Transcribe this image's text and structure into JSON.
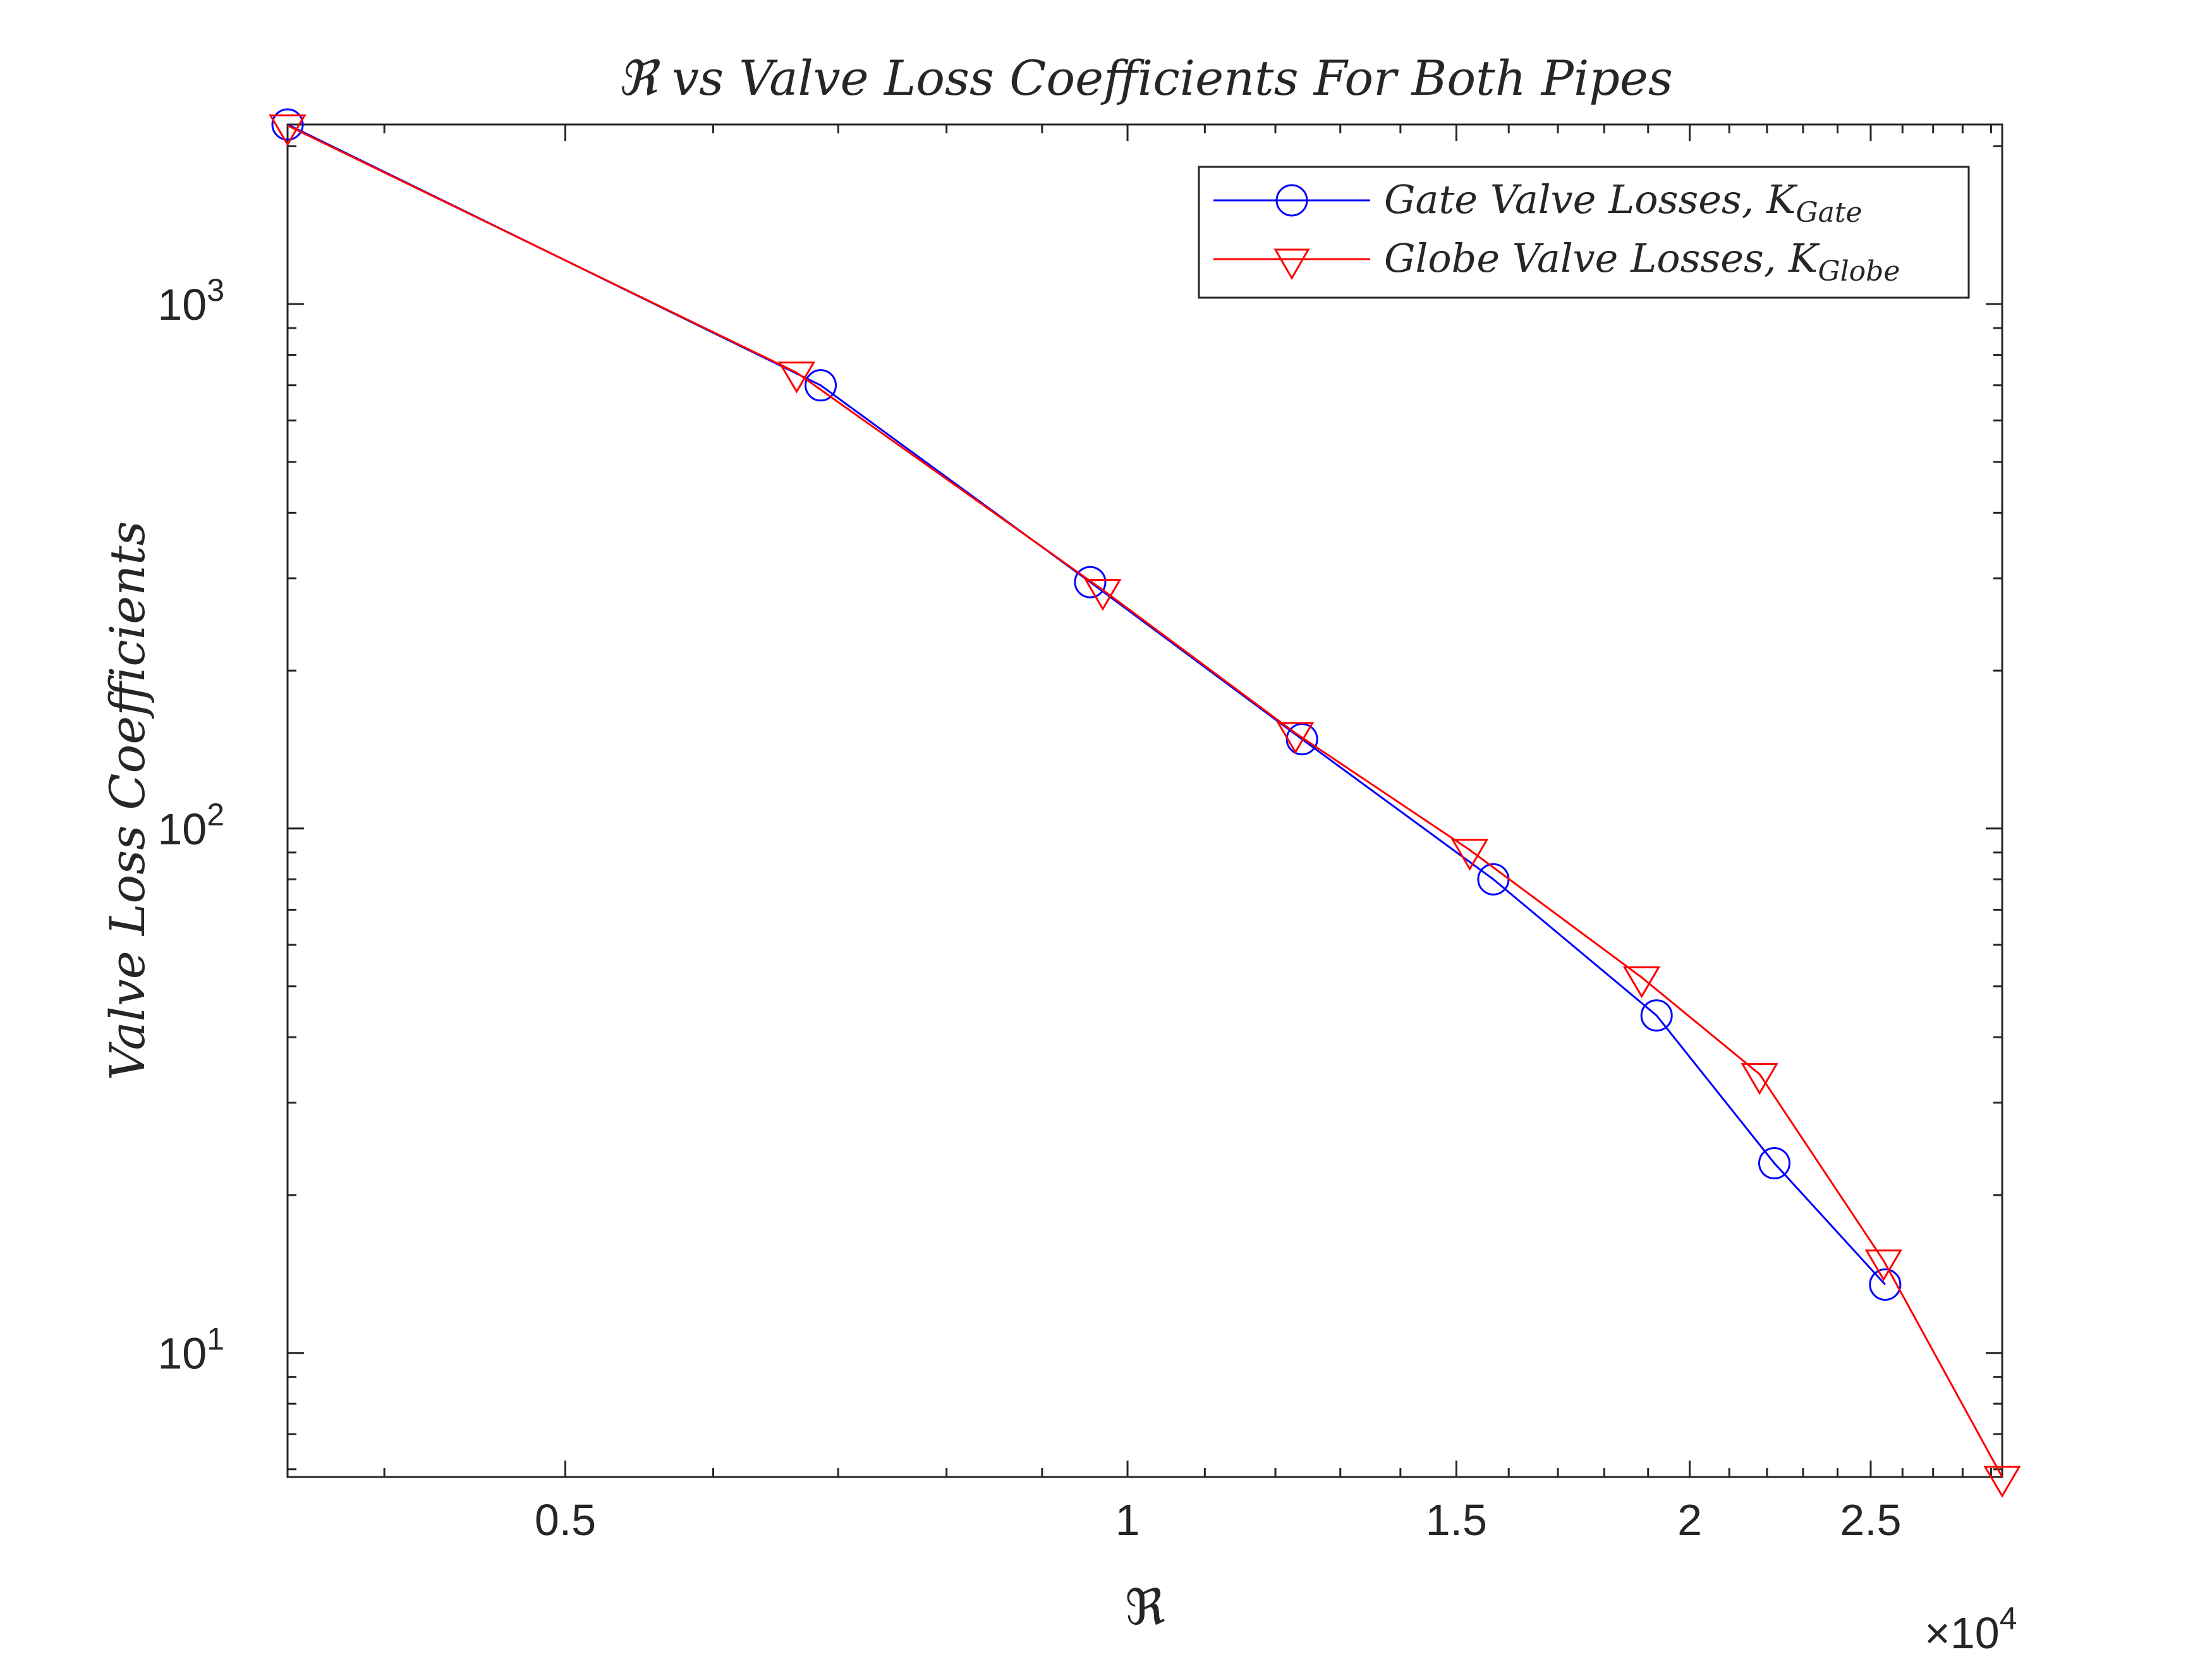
{
  "chart_data": {
    "type": "line",
    "title": "ℜ vs Valve Loss Coefficients For Both Pipes",
    "xlabel": "ℜ",
    "ylabel": "Valve Loss Coefficients",
    "x_scale": "log",
    "y_scale": "log",
    "xlim": [
      3550,
      29400
    ],
    "ylim": [
      5.8,
      2200
    ],
    "x_exponent_label": "×10",
    "x_exponent_power": "4",
    "x_ticks": [
      {
        "value": 5000,
        "label": "0.5"
      },
      {
        "value": 10000,
        "label": "1"
      },
      {
        "value": 15000,
        "label": "1.5"
      },
      {
        "value": 20000,
        "label": "2"
      },
      {
        "value": 25000,
        "label": "2.5"
      }
    ],
    "y_ticks": [
      {
        "value": 10,
        "label": "10",
        "power": "1"
      },
      {
        "value": 100,
        "label": "10",
        "power": "2"
      },
      {
        "value": 1000,
        "label": "10",
        "power": "3"
      }
    ],
    "grid": false,
    "legend_position": "top-right",
    "series": [
      {
        "name": "Gate Valve Losses, K_Gate",
        "legend_main": "Gate Valve Losses, K",
        "legend_sub": "Gate",
        "color": "#0000ff",
        "marker": "circle",
        "x": [
          3550,
          6850,
          9550,
          12400,
          15700,
          19200,
          22200,
          25450
        ],
        "y": [
          2200,
          700,
          295,
          148,
          80,
          44,
          23,
          13.5
        ]
      },
      {
        "name": "Globe Valve Losses, K_Globe",
        "legend_main": "Globe Valve Losses, K",
        "legend_sub": "Globe",
        "color": "#ff0000",
        "marker": "triangle-down",
        "x": [
          3550,
          6650,
          9700,
          12300,
          15250,
          18850,
          21800,
          25400,
          29400
        ],
        "y": [
          2190,
          740,
          285,
          152,
          91,
          52,
          34,
          15,
          5.8
        ]
      }
    ]
  }
}
